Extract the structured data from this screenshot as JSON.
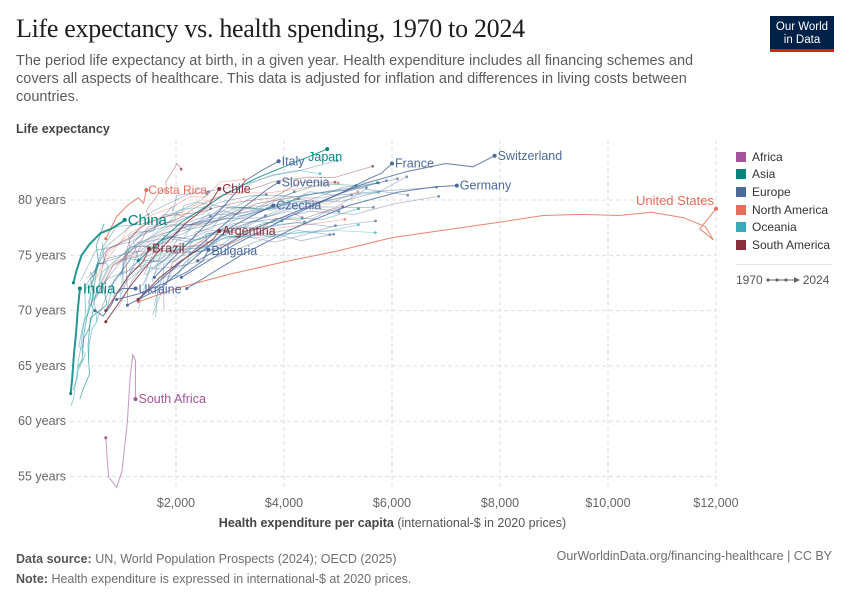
{
  "header": {
    "title": "Life expectancy vs. health spending, 1970 to 2024",
    "subtitle": "The period life expectancy at birth, in a given year. Health expenditure includes all financing schemes and covers all aspects of healthcare. This data is adjusted for inflation and differences in living costs between countries.",
    "logo_line1": "Our World",
    "logo_line2": "in Data"
  },
  "footer": {
    "source_label": "Data source:",
    "source_text": "UN, World Population Prospects (2024); OECD (2025)",
    "note_label": "Note:",
    "note_text": "Health expenditure is expressed in international-$ at 2020 prices.",
    "url": "OurWorldinData.org/financing-healthcare | CC BY"
  },
  "legend": {
    "items": [
      {
        "label": "Africa",
        "color": "#a2559c"
      },
      {
        "label": "Asia",
        "color": "#00847e"
      },
      {
        "label": "Europe",
        "color": "#4c6a9c"
      },
      {
        "label": "North America",
        "color": "#e56e5a"
      },
      {
        "label": "Oceania",
        "color": "#38aaba"
      },
      {
        "label": "South America",
        "color": "#883039"
      }
    ],
    "time_start": "1970",
    "time_end": "2024"
  },
  "chart_data": {
    "type": "scatter",
    "subtype": "connected-scatter",
    "title": "Life expectancy vs. health spending, 1970 to 2024",
    "ylabel": "Life expectancy",
    "xlabel_bold": "Health expenditure per capita",
    "xlabel_rest": " (international-$ in 2020 prices)",
    "xlim": [
      0,
      12200
    ],
    "ylim": [
      54,
      86
    ],
    "xticks": [
      2000,
      4000,
      6000,
      8000,
      10000,
      12000
    ],
    "xtick_labels": [
      "$2,000",
      "$4,000",
      "$6,000",
      "$8,000",
      "$10,000",
      "$12,000"
    ],
    "yticks": [
      55,
      60,
      65,
      70,
      75,
      80
    ],
    "ytick_labels": [
      "55 years",
      "60 years",
      "65 years",
      "70 years",
      "75 years",
      "80 years"
    ],
    "grid": true,
    "legend_position": "right",
    "series": [
      {
        "name": "United States",
        "region": "North America",
        "labeled": true,
        "x": [
          1300,
          2000,
          3000,
          4000,
          5000,
          6000,
          7000,
          8000,
          8800,
          9500,
          10200,
          10800,
          11400,
          11800,
          11950,
          11700,
          12000
        ],
        "y": [
          70.8,
          72.0,
          73.3,
          74.4,
          75.4,
          76.6,
          77.3,
          78.0,
          78.6,
          78.7,
          78.6,
          78.9,
          78.4,
          77.6,
          76.4,
          77.4,
          79.2
        ]
      },
      {
        "name": "Switzerland",
        "region": "Europe",
        "labeled": true,
        "x": [
          2400,
          3500,
          4500,
          5500,
          6300,
          7000,
          7500,
          7900
        ],
        "y": [
          74.5,
          77.5,
          79.5,
          81.5,
          82.6,
          83.3,
          83.0,
          84.0
        ]
      },
      {
        "name": "Germany",
        "region": "Europe",
        "labeled": true,
        "x": [
          2200,
          3200,
          4200,
          5200,
          6100,
          6800,
          7200
        ],
        "y": [
          72.0,
          75.0,
          77.5,
          79.5,
          80.7,
          81.2,
          81.3
        ]
      },
      {
        "name": "France",
        "region": "Europe",
        "labeled": true,
        "x": [
          2100,
          3100,
          4100,
          5000,
          5600,
          5800,
          6000
        ],
        "y": [
          73.0,
          76.0,
          78.5,
          80.5,
          82.0,
          82.4,
          83.3
        ]
      },
      {
        "name": "Japan",
        "region": "Asia",
        "labeled": true,
        "x": [
          1300,
          2100,
          2900,
          3500,
          4000,
          4500,
          4800
        ],
        "y": [
          74.5,
          78.0,
          80.5,
          82.0,
          83.0,
          84.0,
          84.6
        ]
      },
      {
        "name": "Italy",
        "region": "Europe",
        "labeled": true,
        "x": [
          1600,
          2300,
          2900,
          3300,
          3600,
          3900
        ],
        "y": [
          73.0,
          76.5,
          79.5,
          81.8,
          82.7,
          83.5
        ]
      },
      {
        "name": "Slovenia",
        "region": "Europe",
        "labeled": true,
        "x": [
          1300,
          2000,
          2700,
          3300,
          3700,
          3900
        ],
        "y": [
          71.0,
          74.0,
          77.0,
          79.5,
          81.0,
          81.6
        ]
      },
      {
        "name": "Czechia",
        "region": "Europe",
        "labeled": true,
        "x": [
          1100,
          1700,
          2400,
          3000,
          3500,
          3800
        ],
        "y": [
          70.5,
          72.0,
          75.0,
          77.5,
          78.8,
          79.5
        ]
      },
      {
        "name": "Chile",
        "region": "South America",
        "labeled": true,
        "x": [
          700,
          1200,
          1700,
          2200,
          2600,
          2800
        ],
        "y": [
          69.0,
          72.5,
          75.5,
          78.0,
          79.5,
          81.0
        ]
      },
      {
        "name": "Costa Rica",
        "region": "North America",
        "labeled": true,
        "x": [
          700,
          900,
          1100,
          1300,
          1400,
          1450
        ],
        "y": [
          76.5,
          78.5,
          79.5,
          80.2,
          79.7,
          80.9
        ]
      },
      {
        "name": "Argentina",
        "region": "South America",
        "labeled": true,
        "x": [
          1300,
          1700,
          2100,
          2400,
          2700,
          2800
        ],
        "y": [
          71.0,
          73.0,
          74.5,
          75.5,
          76.5,
          77.2
        ]
      },
      {
        "name": "Bulgaria",
        "region": "Europe",
        "labeled": true,
        "x": [
          900,
          1300,
          1800,
          2200,
          2500,
          2600
        ],
        "y": [
          71.0,
          71.5,
          72.5,
          73.5,
          74.5,
          75.5
        ]
      },
      {
        "name": "Brazil",
        "region": "South America",
        "labeled": true,
        "x": [
          700,
          900,
          1100,
          1300,
          1400,
          1500
        ],
        "y": [
          70.0,
          71.5,
          73.0,
          74.0,
          74.5,
          75.6
        ]
      },
      {
        "name": "Ukraine",
        "region": "Europe",
        "labeled": true,
        "x": [
          500,
          650,
          800,
          900,
          1000,
          1250
        ],
        "y": [
          70.0,
          69.5,
          70.5,
          71.5,
          72.0,
          72.0
        ]
      },
      {
        "name": "China",
        "region": "Asia",
        "labeled": true,
        "x": [
          100,
          150,
          250,
          400,
          600,
          800,
          1000,
          1050
        ],
        "y": [
          72.5,
          73.5,
          75.0,
          76.0,
          77.0,
          77.4,
          78.0,
          78.2
        ]
      },
      {
        "name": "India",
        "region": "Asia",
        "labeled": true,
        "x": [
          50,
          80,
          110,
          150,
          180,
          200,
          220
        ],
        "y": [
          62.5,
          64.0,
          66.0,
          68.0,
          70.0,
          71.0,
          72.0
        ]
      },
      {
        "name": "South Africa",
        "region": "Africa",
        "labeled": true,
        "x": [
          700,
          750,
          900,
          1000,
          1100,
          1150,
          1200,
          1250,
          1250
        ],
        "y": [
          58.5,
          55.0,
          54.0,
          55.5,
          60.0,
          64.0,
          66.0,
          65.5,
          62.0
        ]
      }
    ]
  }
}
